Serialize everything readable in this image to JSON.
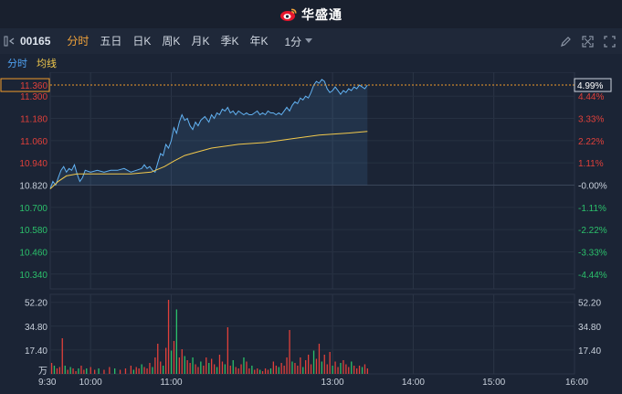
{
  "header": {
    "brand": "华盛通"
  },
  "toolbar": {
    "code": "00165",
    "tabs": [
      "分时",
      "五日",
      "日K",
      "周K",
      "月K",
      "季K",
      "年K"
    ],
    "active_tab": "分时",
    "interval": "1分",
    "icons": [
      "collapse-left-icon",
      "pencil-icon",
      "expand-icon",
      "fullscreen-icon"
    ]
  },
  "subtabs": {
    "minute": "分时",
    "avg": "均线"
  },
  "colors": {
    "up": "#e0403a",
    "down": "#2bc06b",
    "price_line": "#62b2f2",
    "avg_line": "#f2c94c",
    "current": "#f29b2c",
    "background": "#1b2435"
  },
  "chart_data": {
    "type": "line",
    "prev_close": 10.82,
    "current_price": "11.360",
    "current_pct": "4.99%",
    "price_labels": [
      "11.300",
      "11.180",
      "11.060",
      "10.940",
      "10.820",
      "10.700",
      "10.580",
      "10.460",
      "10.340"
    ],
    "price_values": [
      11.3,
      11.18,
      11.06,
      10.94,
      10.82,
      10.7,
      10.58,
      10.46,
      10.34
    ],
    "pct_labels": [
      "4.44%",
      "3.33%",
      "2.22%",
      "1.11%",
      "-0.00%",
      "-1.11%",
      "-2.22%",
      "-3.33%",
      "-4.44%"
    ],
    "volume_labels": [
      "52.20",
      "34.80",
      "17.40"
    ],
    "volume_values": [
      52.2,
      34.8,
      17.4
    ],
    "volume_unit": "万",
    "time_labels": [
      "9:30",
      "10:00",
      "11:00",
      "13:00",
      "14:00",
      "15:00",
      "16:00"
    ],
    "price_series": [
      {
        "t": 0,
        "v": 10.8
      },
      {
        "t": 2,
        "v": 10.84
      },
      {
        "t": 4,
        "v": 10.82
      },
      {
        "t": 6,
        "v": 10.86
      },
      {
        "t": 8,
        "v": 10.9
      },
      {
        "t": 10,
        "v": 10.92
      },
      {
        "t": 12,
        "v": 10.89
      },
      {
        "t": 14,
        "v": 10.91
      },
      {
        "t": 16,
        "v": 10.9
      },
      {
        "t": 18,
        "v": 10.93
      },
      {
        "t": 20,
        "v": 10.88
      },
      {
        "t": 22,
        "v": 10.84
      },
      {
        "t": 24,
        "v": 10.86
      },
      {
        "t": 26,
        "v": 10.9
      },
      {
        "t": 30,
        "v": 10.89
      },
      {
        "t": 35,
        "v": 10.9
      },
      {
        "t": 40,
        "v": 10.89
      },
      {
        "t": 45,
        "v": 10.9
      },
      {
        "t": 50,
        "v": 10.9
      },
      {
        "t": 55,
        "v": 10.91
      },
      {
        "t": 60,
        "v": 10.89
      },
      {
        "t": 64,
        "v": 10.9
      },
      {
        "t": 68,
        "v": 10.91
      },
      {
        "t": 70,
        "v": 10.93
      },
      {
        "t": 72,
        "v": 10.91
      },
      {
        "t": 74,
        "v": 10.92
      },
      {
        "t": 76,
        "v": 10.9
      },
      {
        "t": 78,
        "v": 10.89
      },
      {
        "t": 80,
        "v": 10.94
      },
      {
        "t": 82,
        "v": 10.99
      },
      {
        "t": 84,
        "v": 10.98
      },
      {
        "t": 86,
        "v": 11.04
      },
      {
        "t": 88,
        "v": 11.02
      },
      {
        "t": 90,
        "v": 11.06
      },
      {
        "t": 92,
        "v": 11.13
      },
      {
        "t": 94,
        "v": 11.1
      },
      {
        "t": 96,
        "v": 11.16
      },
      {
        "t": 98,
        "v": 11.2
      },
      {
        "t": 100,
        "v": 11.17
      },
      {
        "t": 102,
        "v": 11.18
      },
      {
        "t": 104,
        "v": 11.14
      },
      {
        "t": 106,
        "v": 11.12
      },
      {
        "t": 108,
        "v": 11.16
      },
      {
        "t": 110,
        "v": 11.14
      },
      {
        "t": 112,
        "v": 11.17
      },
      {
        "t": 115,
        "v": 11.19
      },
      {
        "t": 118,
        "v": 11.16
      },
      {
        "t": 120,
        "v": 11.2
      },
      {
        "t": 122,
        "v": 11.18
      },
      {
        "t": 124,
        "v": 11.21
      },
      {
        "t": 126,
        "v": 11.2
      },
      {
        "t": 128,
        "v": 11.23
      },
      {
        "t": 130,
        "v": 11.22
      },
      {
        "t": 132,
        "v": 11.24
      },
      {
        "t": 134,
        "v": 11.21
      },
      {
        "t": 136,
        "v": 11.22
      },
      {
        "t": 138,
        "v": 11.2
      },
      {
        "t": 140,
        "v": 11.22
      },
      {
        "t": 142,
        "v": 11.21
      },
      {
        "t": 144,
        "v": 11.2
      },
      {
        "t": 146,
        "v": 11.21
      },
      {
        "t": 148,
        "v": 11.2
      },
      {
        "t": 150,
        "v": 11.2
      },
      {
        "t": 152,
        "v": 11.21
      },
      {
        "t": 154,
        "v": 11.22
      },
      {
        "t": 156,
        "v": 11.2
      },
      {
        "t": 158,
        "v": 11.21
      },
      {
        "t": 160,
        "v": 11.2
      },
      {
        "t": 162,
        "v": 11.22
      },
      {
        "t": 164,
        "v": 11.21
      },
      {
        "t": 166,
        "v": 11.21
      },
      {
        "t": 168,
        "v": 11.2
      },
      {
        "t": 170,
        "v": 11.21
      },
      {
        "t": 172,
        "v": 11.2
      },
      {
        "t": 174,
        "v": 11.22
      },
      {
        "t": 176,
        "v": 11.24
      },
      {
        "t": 178,
        "v": 11.22
      },
      {
        "t": 180,
        "v": 11.25
      },
      {
        "t": 182,
        "v": 11.27
      },
      {
        "t": 184,
        "v": 11.26
      },
      {
        "t": 186,
        "v": 11.29
      },
      {
        "t": 188,
        "v": 11.28
      },
      {
        "t": 190,
        "v": 11.3
      },
      {
        "t": 192,
        "v": 11.29
      },
      {
        "t": 194,
        "v": 11.32
      },
      {
        "t": 196,
        "v": 11.36
      },
      {
        "t": 198,
        "v": 11.38
      },
      {
        "t": 200,
        "v": 11.37
      },
      {
        "t": 202,
        "v": 11.39
      },
      {
        "t": 204,
        "v": 11.38
      },
      {
        "t": 206,
        "v": 11.34
      },
      {
        "t": 208,
        "v": 11.32
      },
      {
        "t": 210,
        "v": 11.33
      },
      {
        "t": 212,
        "v": 11.35
      },
      {
        "t": 214,
        "v": 11.33
      },
      {
        "t": 216,
        "v": 11.31
      },
      {
        "t": 218,
        "v": 11.33
      },
      {
        "t": 220,
        "v": 11.32
      },
      {
        "t": 222,
        "v": 11.34
      },
      {
        "t": 224,
        "v": 11.33
      },
      {
        "t": 226,
        "v": 11.35
      },
      {
        "t": 228,
        "v": 11.34
      },
      {
        "t": 230,
        "v": 11.36
      },
      {
        "t": 232,
        "v": 11.35
      },
      {
        "t": 234,
        "v": 11.34
      },
      {
        "t": 236,
        "v": 11.36
      }
    ],
    "avg_series": [
      {
        "t": 0,
        "v": 10.8
      },
      {
        "t": 6,
        "v": 10.84
      },
      {
        "t": 12,
        "v": 10.87
      },
      {
        "t": 20,
        "v": 10.88
      },
      {
        "t": 40,
        "v": 10.88
      },
      {
        "t": 60,
        "v": 10.88
      },
      {
        "t": 75,
        "v": 10.89
      },
      {
        "t": 85,
        "v": 10.92
      },
      {
        "t": 92,
        "v": 10.95
      },
      {
        "t": 100,
        "v": 10.98
      },
      {
        "t": 110,
        "v": 11.0
      },
      {
        "t": 120,
        "v": 11.02
      },
      {
        "t": 140,
        "v": 11.04
      },
      {
        "t": 160,
        "v": 11.05
      },
      {
        "t": 180,
        "v": 11.07
      },
      {
        "t": 200,
        "v": 11.09
      },
      {
        "t": 220,
        "v": 11.1
      },
      {
        "t": 236,
        "v": 11.11
      }
    ],
    "volume_series": [
      {
        "t": 1,
        "v": 8,
        "c": "up"
      },
      {
        "t": 3,
        "v": 6,
        "c": "down"
      },
      {
        "t": 5,
        "v": 4,
        "c": "up"
      },
      {
        "t": 7,
        "v": 5,
        "c": "up"
      },
      {
        "t": 9,
        "v": 26,
        "c": "up"
      },
      {
        "t": 11,
        "v": 6,
        "c": "down"
      },
      {
        "t": 13,
        "v": 3,
        "c": "up"
      },
      {
        "t": 15,
        "v": 5,
        "c": "down"
      },
      {
        "t": 17,
        "v": 4,
        "c": "up"
      },
      {
        "t": 19,
        "v": 2,
        "c": "up"
      },
      {
        "t": 21,
        "v": 4,
        "c": "down"
      },
      {
        "t": 23,
        "v": 6,
        "c": "up"
      },
      {
        "t": 25,
        "v": 3,
        "c": "up"
      },
      {
        "t": 27,
        "v": 4,
        "c": "down"
      },
      {
        "t": 30,
        "v": 5,
        "c": "up"
      },
      {
        "t": 33,
        "v": 3,
        "c": "up"
      },
      {
        "t": 36,
        "v": 4,
        "c": "down"
      },
      {
        "t": 40,
        "v": 3,
        "c": "up"
      },
      {
        "t": 44,
        "v": 5,
        "c": "up"
      },
      {
        "t": 48,
        "v": 4,
        "c": "down"
      },
      {
        "t": 52,
        "v": 3,
        "c": "up"
      },
      {
        "t": 56,
        "v": 4,
        "c": "up"
      },
      {
        "t": 60,
        "v": 6,
        "c": "up"
      },
      {
        "t": 62,
        "v": 3,
        "c": "down"
      },
      {
        "t": 64,
        "v": 5,
        "c": "up"
      },
      {
        "t": 66,
        "v": 4,
        "c": "up"
      },
      {
        "t": 68,
        "v": 7,
        "c": "down"
      },
      {
        "t": 70,
        "v": 5,
        "c": "up"
      },
      {
        "t": 72,
        "v": 4,
        "c": "up"
      },
      {
        "t": 74,
        "v": 8,
        "c": "up"
      },
      {
        "t": 76,
        "v": 5,
        "c": "down"
      },
      {
        "t": 78,
        "v": 12,
        "c": "up"
      },
      {
        "t": 80,
        "v": 22,
        "c": "up"
      },
      {
        "t": 82,
        "v": 9,
        "c": "up"
      },
      {
        "t": 84,
        "v": 6,
        "c": "down"
      },
      {
        "t": 86,
        "v": 19,
        "c": "up"
      },
      {
        "t": 88,
        "v": 54,
        "c": "up"
      },
      {
        "t": 90,
        "v": 17,
        "c": "down"
      },
      {
        "t": 92,
        "v": 24,
        "c": "up"
      },
      {
        "t": 94,
        "v": 47,
        "c": "down"
      },
      {
        "t": 96,
        "v": 12,
        "c": "up"
      },
      {
        "t": 98,
        "v": 18,
        "c": "up"
      },
      {
        "t": 100,
        "v": 13,
        "c": "down"
      },
      {
        "t": 102,
        "v": 10,
        "c": "up"
      },
      {
        "t": 104,
        "v": 8,
        "c": "up"
      },
      {
        "t": 106,
        "v": 12,
        "c": "down"
      },
      {
        "t": 108,
        "v": 7,
        "c": "up"
      },
      {
        "t": 110,
        "v": 5,
        "c": "up"
      },
      {
        "t": 112,
        "v": 9,
        "c": "down"
      },
      {
        "t": 114,
        "v": 6,
        "c": "up"
      },
      {
        "t": 116,
        "v": 12,
        "c": "up"
      },
      {
        "t": 118,
        "v": 8,
        "c": "down"
      },
      {
        "t": 120,
        "v": 11,
        "c": "up"
      },
      {
        "t": 122,
        "v": 7,
        "c": "up"
      },
      {
        "t": 124,
        "v": 5,
        "c": "down"
      },
      {
        "t": 126,
        "v": 14,
        "c": "up"
      },
      {
        "t": 128,
        "v": 9,
        "c": "up"
      },
      {
        "t": 130,
        "v": 7,
        "c": "down"
      },
      {
        "t": 132,
        "v": 34,
        "c": "up"
      },
      {
        "t": 134,
        "v": 6,
        "c": "up"
      },
      {
        "t": 136,
        "v": 10,
        "c": "down"
      },
      {
        "t": 138,
        "v": 5,
        "c": "up"
      },
      {
        "t": 140,
        "v": 4,
        "c": "up"
      },
      {
        "t": 142,
        "v": 7,
        "c": "up"
      },
      {
        "t": 144,
        "v": 12,
        "c": "down"
      },
      {
        "t": 146,
        "v": 9,
        "c": "up"
      },
      {
        "t": 148,
        "v": 4,
        "c": "up"
      },
      {
        "t": 150,
        "v": 6,
        "c": "down"
      },
      {
        "t": 152,
        "v": 3,
        "c": "up"
      },
      {
        "t": 154,
        "v": 4,
        "c": "up"
      },
      {
        "t": 156,
        "v": 3,
        "c": "down"
      },
      {
        "t": 158,
        "v": 2,
        "c": "up"
      },
      {
        "t": 160,
        "v": 4,
        "c": "up"
      },
      {
        "t": 162,
        "v": 3,
        "c": "up"
      },
      {
        "t": 164,
        "v": 4,
        "c": "down"
      },
      {
        "t": 166,
        "v": 9,
        "c": "up"
      },
      {
        "t": 168,
        "v": 6,
        "c": "up"
      },
      {
        "t": 170,
        "v": 5,
        "c": "down"
      },
      {
        "t": 172,
        "v": 8,
        "c": "up"
      },
      {
        "t": 174,
        "v": 6,
        "c": "up"
      },
      {
        "t": 176,
        "v": 12,
        "c": "up"
      },
      {
        "t": 178,
        "v": 32,
        "c": "up"
      },
      {
        "t": 180,
        "v": 9,
        "c": "down"
      },
      {
        "t": 182,
        "v": 8,
        "c": "up"
      },
      {
        "t": 184,
        "v": 6,
        "c": "up"
      },
      {
        "t": 186,
        "v": 12,
        "c": "up"
      },
      {
        "t": 188,
        "v": 5,
        "c": "down"
      },
      {
        "t": 190,
        "v": 10,
        "c": "up"
      },
      {
        "t": 192,
        "v": 14,
        "c": "up"
      },
      {
        "t": 194,
        "v": 7,
        "c": "up"
      },
      {
        "t": 196,
        "v": 17,
        "c": "down"
      },
      {
        "t": 198,
        "v": 11,
        "c": "up"
      },
      {
        "t": 200,
        "v": 22,
        "c": "up"
      },
      {
        "t": 202,
        "v": 9,
        "c": "down"
      },
      {
        "t": 204,
        "v": 14,
        "c": "up"
      },
      {
        "t": 206,
        "v": 7,
        "c": "up"
      },
      {
        "t": 208,
        "v": 16,
        "c": "up"
      },
      {
        "t": 210,
        "v": 6,
        "c": "down"
      },
      {
        "t": 212,
        "v": 9,
        "c": "up"
      },
      {
        "t": 214,
        "v": 5,
        "c": "up"
      },
      {
        "t": 216,
        "v": 8,
        "c": "down"
      },
      {
        "t": 218,
        "v": 10,
        "c": "up"
      },
      {
        "t": 220,
        "v": 7,
        "c": "up"
      },
      {
        "t": 222,
        "v": 5,
        "c": "up"
      },
      {
        "t": 224,
        "v": 9,
        "c": "down"
      },
      {
        "t": 226,
        "v": 6,
        "c": "up"
      },
      {
        "t": 228,
        "v": 4,
        "c": "up"
      },
      {
        "t": 230,
        "v": 6,
        "c": "up"
      },
      {
        "t": 232,
        "v": 5,
        "c": "down"
      },
      {
        "t": 234,
        "v": 7,
        "c": "up"
      },
      {
        "t": 236,
        "v": 4,
        "c": "up"
      }
    ]
  }
}
